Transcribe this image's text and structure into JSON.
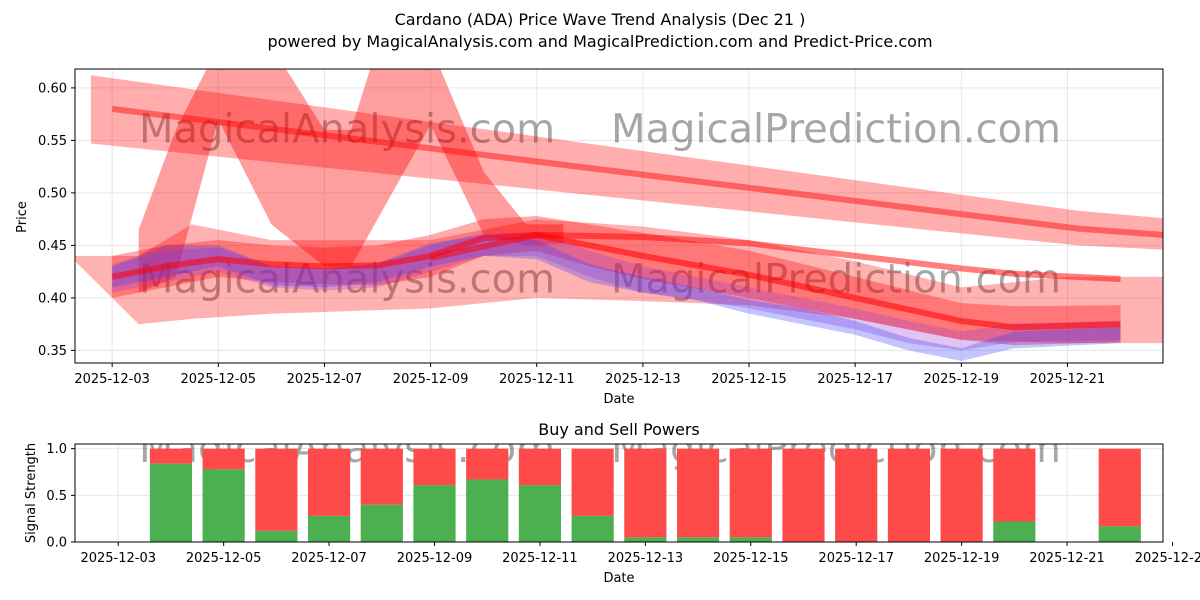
{
  "header": {
    "title": "Cardano (ADA) Price Wave Trend Analysis (Dec 21 )",
    "subtitle": "powered by MagicalAnalysis.com and MagicalPrediction.com and Predict-Price.com"
  },
  "watermarks": [
    "MagicalAnalysis.com",
    "MagicalPrediction.com"
  ],
  "colors": {
    "band_red": "#ff0000",
    "band_blue": "#3b3bff",
    "buy_green": "#4caf50",
    "sell_red": "#ff4a4a",
    "grid": "#e6e6e6"
  },
  "chart_data": [
    {
      "type": "area",
      "title": "",
      "xlabel": "Date",
      "ylabel": "Price",
      "grid": true,
      "x_start": "2025-12-03",
      "xlim": [
        -0.7,
        19.8
      ],
      "ylim": [
        0.338,
        0.618
      ],
      "x_ticks": [
        {
          "x": 0,
          "label": "2025-12-03"
        },
        {
          "x": 2,
          "label": "2025-12-05"
        },
        {
          "x": 4,
          "label": "2025-12-07"
        },
        {
          "x": 6,
          "label": "2025-12-09"
        },
        {
          "x": 8,
          "label": "2025-12-11"
        },
        {
          "x": 10,
          "label": "2025-12-13"
        },
        {
          "x": 12,
          "label": "2025-12-15"
        },
        {
          "x": 14,
          "label": "2025-12-17"
        },
        {
          "x": 16,
          "label": "2025-12-19"
        },
        {
          "x": 18,
          "label": "2025-12-21"
        }
      ],
      "y_ticks": [
        {
          "y": 0.35,
          "label": "0.35"
        },
        {
          "y": 0.4,
          "label": "0.40"
        },
        {
          "y": 0.45,
          "label": "0.45"
        },
        {
          "y": 0.5,
          "label": "0.50"
        },
        {
          "y": 0.55,
          "label": "0.55"
        },
        {
          "y": 0.6,
          "label": "0.60"
        }
      ],
      "bands": [
        {
          "name": "upper-trend-band",
          "color": "red",
          "opacity": 0.32,
          "x": [
            -0.4,
            18.2,
            19.8
          ],
          "lower": [
            0.547,
            0.45,
            0.446
          ],
          "upper": [
            0.612,
            0.483,
            0.476
          ]
        },
        {
          "name": "wave-projection-band",
          "color": "red",
          "opacity": 0.38,
          "x": [
            0.5,
            1.2,
            2.0,
            3.0,
            4.0,
            4.5,
            5.0,
            6.0,
            7.0,
            7.8,
            8.0,
            8.5
          ],
          "lower": [
            0.405,
            0.42,
            0.57,
            0.47,
            0.43,
            0.43,
            0.475,
            0.565,
            0.46,
            0.45,
            0.45,
            0.452
          ],
          "upper": [
            0.465,
            0.56,
            0.64,
            0.64,
            0.56,
            0.56,
            0.64,
            0.64,
            0.52,
            0.47,
            0.47,
            0.47
          ]
        },
        {
          "name": "outer-red-band",
          "color": "red",
          "opacity": 0.3,
          "x": [
            -0.8,
            0.5,
            1.5,
            3.0,
            6.0,
            8.0,
            10.0,
            12.0,
            14.0,
            16.0,
            18.0,
            19.8
          ],
          "lower": [
            0.44,
            0.375,
            0.38,
            0.385,
            0.39,
            0.4,
            0.397,
            0.393,
            0.38,
            0.36,
            0.357,
            0.357
          ],
          "upper": [
            0.44,
            0.44,
            0.47,
            0.455,
            0.455,
            0.475,
            0.468,
            0.455,
            0.435,
            0.41,
            0.42,
            0.42
          ]
        },
        {
          "name": "mid-red-band",
          "color": "red",
          "opacity": 0.33,
          "x": [
            0,
            1.0,
            2.0,
            3.0,
            4.0,
            5.0,
            6.0,
            7.0,
            8.0,
            9.0,
            10.0,
            12.0,
            14.0,
            16.0,
            17.0,
            19.0
          ],
          "lower": [
            0.4,
            0.41,
            0.42,
            0.415,
            0.413,
            0.412,
            0.42,
            0.44,
            0.445,
            0.43,
            0.418,
            0.4,
            0.38,
            0.36,
            0.355,
            0.358
          ],
          "upper": [
            0.44,
            0.45,
            0.455,
            0.45,
            0.448,
            0.45,
            0.46,
            0.475,
            0.478,
            0.47,
            0.462,
            0.445,
            0.42,
            0.395,
            0.392,
            0.393
          ]
        },
        {
          "name": "purple-band",
          "color": "purple",
          "opacity": 0.3,
          "x": [
            0,
            1.0,
            2.0,
            3.0,
            4.0,
            5.0,
            6.0,
            7.0,
            8.0,
            9.0,
            10.0,
            11.0,
            12.0,
            13.0,
            14.0,
            15.0,
            16.0,
            17.0,
            19.0
          ],
          "lower": [
            0.405,
            0.415,
            0.425,
            0.41,
            0.407,
            0.41,
            0.425,
            0.44,
            0.44,
            0.42,
            0.405,
            0.398,
            0.39,
            0.38,
            0.37,
            0.357,
            0.35,
            0.358,
            0.36
          ],
          "upper": [
            0.432,
            0.445,
            0.448,
            0.43,
            0.428,
            0.432,
            0.45,
            0.462,
            0.462,
            0.445,
            0.43,
            0.42,
            0.41,
            0.4,
            0.39,
            0.378,
            0.368,
            0.376,
            0.378
          ]
        },
        {
          "name": "blue-band",
          "color": "blue",
          "opacity": 0.3,
          "x": [
            0,
            1.0,
            2.0,
            3.0,
            4.0,
            5.0,
            6.0,
            7.0,
            8.0,
            9.0,
            10.0,
            11.0,
            12.0,
            13.0,
            14.0,
            15.0,
            16.0,
            17.0,
            19.0
          ],
          "lower": [
            0.41,
            0.42,
            0.43,
            0.412,
            0.41,
            0.415,
            0.43,
            0.44,
            0.437,
            0.415,
            0.405,
            0.398,
            0.385,
            0.375,
            0.365,
            0.35,
            0.34,
            0.352,
            0.357
          ],
          "upper": [
            0.43,
            0.45,
            0.45,
            0.43,
            0.428,
            0.433,
            0.452,
            0.46,
            0.455,
            0.432,
            0.42,
            0.41,
            0.398,
            0.39,
            0.378,
            0.362,
            0.352,
            0.368,
            0.372
          ]
        }
      ],
      "lines": [
        {
          "name": "upper-trend-line",
          "color": "red",
          "opacity": 0.45,
          "x": [
            0,
            18.2,
            19.8
          ],
          "y": [
            0.58,
            0.466,
            0.46
          ]
        },
        {
          "name": "red-mean-line",
          "color": "red",
          "opacity": 0.55,
          "x": [
            0,
            1.0,
            2.0,
            3.0,
            4.0,
            5.0,
            6.0,
            7.0,
            8.0,
            9.0,
            10.0,
            12.0,
            14.0,
            16.0,
            17.0,
            19.0
          ],
          "y": [
            0.42,
            0.43,
            0.437,
            0.432,
            0.43,
            0.431,
            0.44,
            0.457,
            0.46,
            0.45,
            0.44,
            0.422,
            0.4,
            0.378,
            0.372,
            0.375
          ]
        },
        {
          "name": "upper-mean-line",
          "color": "red",
          "opacity": 0.5,
          "x": [
            6.0,
            8.0,
            10.0,
            12.0,
            14.0,
            16.0,
            17.0,
            19.0
          ],
          "y": [
            0.438,
            0.46,
            0.458,
            0.452,
            0.44,
            0.428,
            0.423,
            0.418
          ]
        }
      ]
    },
    {
      "type": "bar",
      "title": "Buy and Sell Powers",
      "xlabel": "Date",
      "ylabel": "Signal Strength",
      "grid": true,
      "x_start": "2025-12-03",
      "xlim": [
        -0.82,
        19.82
      ],
      "ylim": [
        0,
        1.05
      ],
      "x_ticks": [
        {
          "x": 0,
          "label": "2025-12-03"
        },
        {
          "x": 2,
          "label": "2025-12-05"
        },
        {
          "x": 4,
          "label": "2025-12-07"
        },
        {
          "x": 6,
          "label": "2025-12-09"
        },
        {
          "x": 8,
          "label": "2025-12-11"
        },
        {
          "x": 10,
          "label": "2025-12-13"
        },
        {
          "x": 12,
          "label": "2025-12-15"
        },
        {
          "x": 14,
          "label": "2025-12-17"
        },
        {
          "x": 16,
          "label": "2025-12-19"
        },
        {
          "x": 18,
          "label": "2025-12-21"
        },
        {
          "x": 20,
          "label": "2025-12-23"
        }
      ],
      "y_ticks": [
        {
          "y": 0,
          "label": "0.0"
        },
        {
          "y": 0.5,
          "label": "0.5"
        },
        {
          "y": 1.0,
          "label": "1.0"
        }
      ],
      "categories": [
        "2025-12-04",
        "2025-12-05",
        "2025-12-06",
        "2025-12-07",
        "2025-12-08",
        "2025-12-09",
        "2025-12-10",
        "2025-12-11",
        "2025-12-12",
        "2025-12-13",
        "2025-12-14",
        "2025-12-15",
        "2025-12-16",
        "2025-12-17",
        "2025-12-18",
        "2025-12-19",
        "2025-12-20",
        "2025-12-22"
      ],
      "x": [
        1,
        2,
        3,
        4,
        5,
        6,
        7,
        8,
        9,
        10,
        11,
        12,
        13,
        14,
        15,
        16,
        17,
        19
      ],
      "series": [
        {
          "name": "Buy",
          "values": [
            0.84,
            0.78,
            0.12,
            0.28,
            0.4,
            0.61,
            0.67,
            0.61,
            0.28,
            0.05,
            0.05,
            0.05,
            0.0,
            0.0,
            0.0,
            0.0,
            0.22,
            0.17
          ]
        },
        {
          "name": "Sell",
          "values": [
            0.16,
            0.22,
            0.88,
            0.72,
            0.6,
            0.39,
            0.33,
            0.39,
            0.72,
            0.95,
            0.95,
            0.95,
            1.0,
            1.0,
            1.0,
            1.0,
            0.78,
            0.83
          ]
        }
      ]
    }
  ]
}
